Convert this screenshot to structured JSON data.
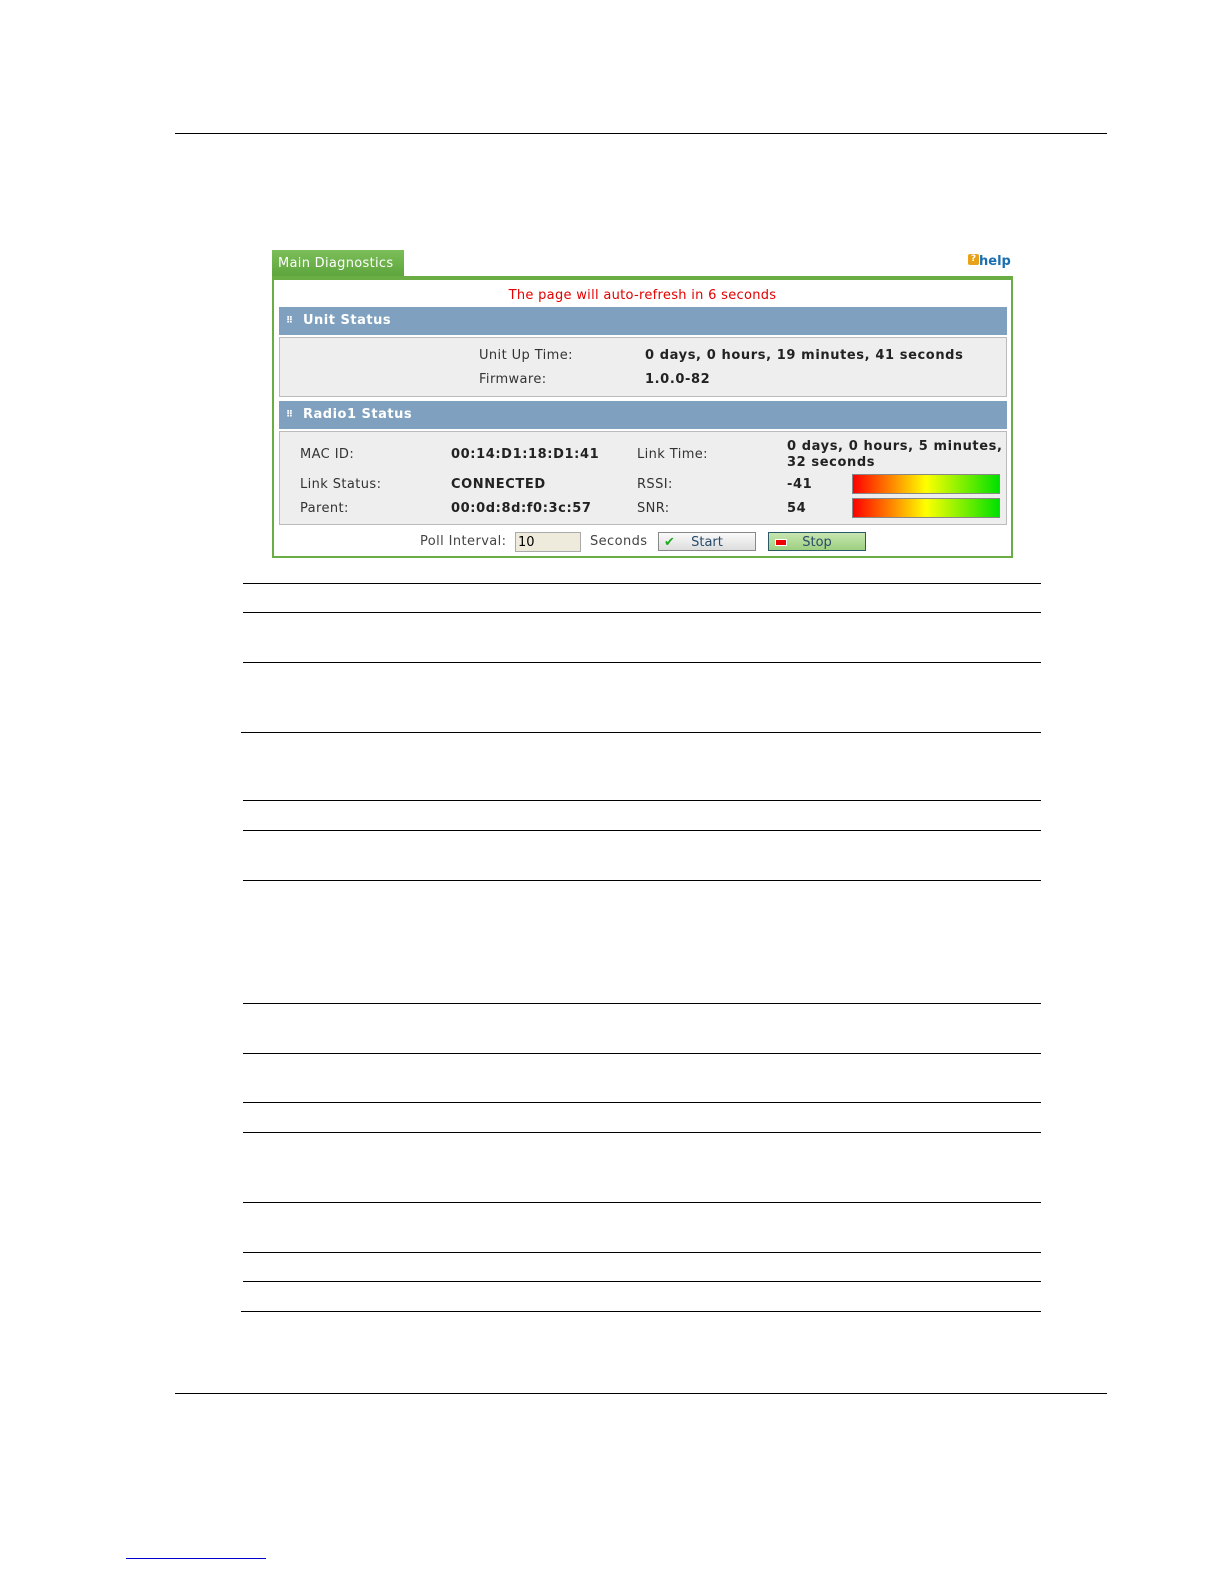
{
  "panel": {
    "tab": "Main Diagnostics",
    "help": "help",
    "refresh": "The page will auto-refresh in 6 seconds"
  },
  "unit": {
    "title": "Unit Status",
    "uptime_label": "Unit Up Time:",
    "uptime": "0 days, 0 hours, 19 minutes, 41 seconds",
    "fw_label": "Firmware:",
    "fw": "1.0.0-82"
  },
  "radio": {
    "title": "Radio1 Status",
    "mac_label": "MAC ID:",
    "mac": "00:14:D1:18:D1:41",
    "status_label": "Link Status:",
    "status": "CONNECTED",
    "parent_label": "Parent:",
    "parent": "00:0d:8d:f0:3c:57",
    "linktime_label": "Link Time:",
    "linktime1": "0 days, 0 hours, 5 minutes,",
    "linktime2": "32 seconds",
    "rssi_label": "RSSI:",
    "rssi": "-41",
    "snr_label": "SNR:",
    "snr": "54"
  },
  "poll": {
    "label": "Poll Interval:",
    "value": "10",
    "unit": "Seconds",
    "start": "Start",
    "stop": "Stop"
  },
  "colors": {
    "accent_green": "#6aad44",
    "header_blue": "#7fa1bf",
    "refresh_red": "#e30000"
  }
}
